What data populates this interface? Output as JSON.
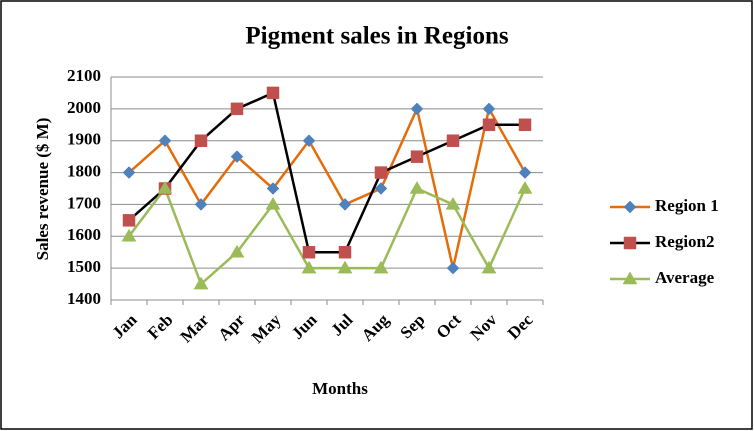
{
  "chart_data": {
    "type": "line",
    "title": "Pigment sales in Regions",
    "x_label": "Months",
    "y_label": "Sales revenue ($ M)",
    "categories": [
      "Jan",
      "Feb",
      "Mar",
      "Apr",
      "May",
      "Jun",
      "Jul",
      "Aug",
      "Sep",
      "Oct",
      "Nov",
      "Dec"
    ],
    "series": [
      {
        "name": "Region 1",
        "color": "#e46c0a",
        "marker_color": "#4f81bd",
        "marker": "diamond",
        "values": [
          1800,
          1900,
          1700,
          1850,
          1750,
          1900,
          1700,
          1750,
          2000,
          1500,
          2000,
          1800
        ]
      },
      {
        "name": "Region2",
        "color": "#000000",
        "marker_color": "#c0504d",
        "marker": "square",
        "values": [
          1650,
          1750,
          1900,
          2000,
          2050,
          1550,
          1550,
          1800,
          1850,
          1900,
          1950,
          1950
        ]
      },
      {
        "name": "Average",
        "color": "#9bbb59",
        "marker_color": "#9bbb59",
        "marker": "triangle",
        "values": [
          1600,
          1750,
          1450,
          1550,
          1700,
          1500,
          1500,
          1500,
          1750,
          1700,
          1500,
          1750
        ]
      }
    ],
    "ylim": [
      1400,
      2100
    ],
    "yticks": [
      1400,
      1500,
      1600,
      1700,
      1800,
      1900,
      2000,
      2100
    ],
    "grid": true,
    "legend": "right"
  }
}
